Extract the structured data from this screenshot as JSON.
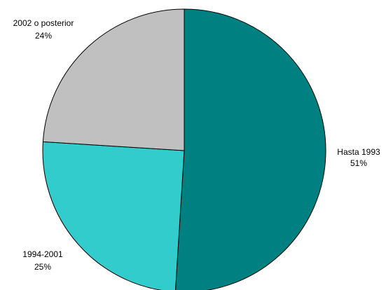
{
  "chart_data": {
    "type": "pie",
    "slices": [
      {
        "label": "Hasta 1993",
        "percent_label": "51%",
        "value": 51,
        "color": "#008080"
      },
      {
        "label": "1994-2001",
        "percent_label": "25%",
        "value": 25,
        "color": "#33CCCC"
      },
      {
        "label": "2002 o posterior",
        "percent_label": "24%",
        "value": 24,
        "color": "#C0C0C0"
      }
    ],
    "start_angle_deg": 0,
    "direction": "clockwise",
    "outline_color": "#000000"
  }
}
